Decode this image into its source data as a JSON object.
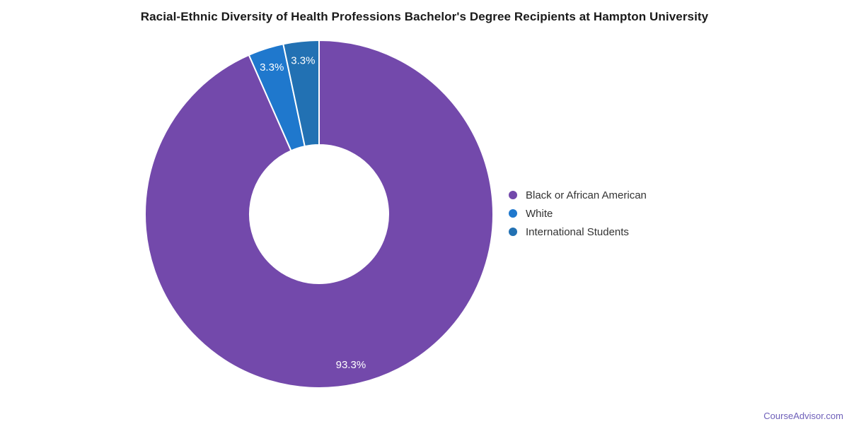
{
  "page": {
    "watermark": "CourseAdvisor.com"
  },
  "chart_data": {
    "type": "pie",
    "subtype": "donut",
    "title": "Racial-Ethnic Diversity of Health Professions Bachelor's Degree Recipients at Hampton University",
    "categories": [
      "Black or African American",
      "White",
      "International Students"
    ],
    "values": [
      93.3,
      3.3,
      3.3
    ],
    "data_labels": [
      "93.3%",
      "3.3%",
      "3.3%"
    ],
    "colors": [
      "#7349ab",
      "#1f78cd",
      "#2271b3"
    ],
    "label_color": "#ffffff",
    "slice_border_color": "#ffffff",
    "legend_position": "right",
    "start_angle_deg": 0,
    "direction": "clockwise",
    "inner_radius_pct": 40
  }
}
